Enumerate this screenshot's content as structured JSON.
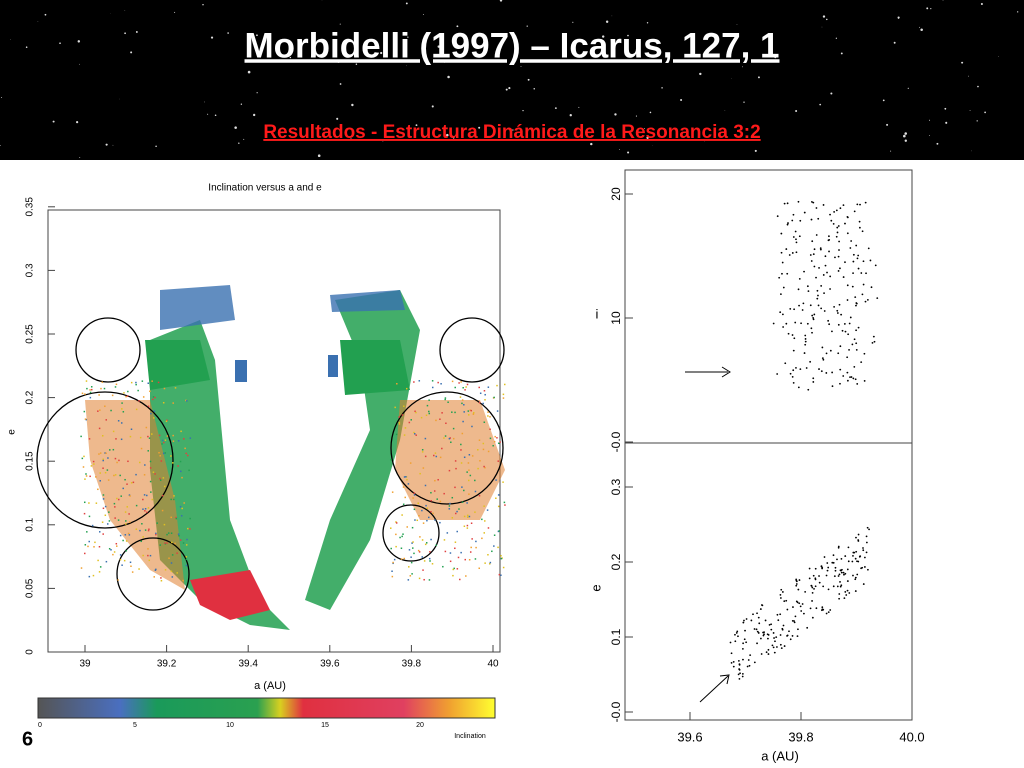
{
  "header": {
    "title": "Morbidelli (1997) – Icarus, 127, 1",
    "subtitle": "Resultados - Estructura Dinámica de la Resonancia 3:2"
  },
  "slide_number": "6",
  "left_figure": {
    "title": "Inclination versus a and e",
    "x_label": "a (AU)",
    "y_label": "e",
    "x_ticks": [
      "39",
      "39.2",
      "39.4",
      "39.6",
      "39.8",
      "40"
    ],
    "y_ticks": [
      "0",
      "0.05",
      "0.1",
      "0.15",
      "0.2",
      "0.25",
      "0.3",
      "0.35"
    ],
    "colorbar_ticks": [
      "0",
      "5",
      "10",
      "15",
      "20"
    ],
    "colorbar_label": "Inclination"
  },
  "right_figure": {
    "top_y_label": "i",
    "top_y_ticks": [
      "-0.0",
      "10",
      "20"
    ],
    "bottom_y_label": "e",
    "bottom_y_ticks": [
      "-0.0",
      "0.1",
      "0.2",
      "0.3"
    ],
    "x_ticks": [
      "39.6",
      "39.8",
      "40.0"
    ],
    "x_label": "a (AU)"
  }
}
